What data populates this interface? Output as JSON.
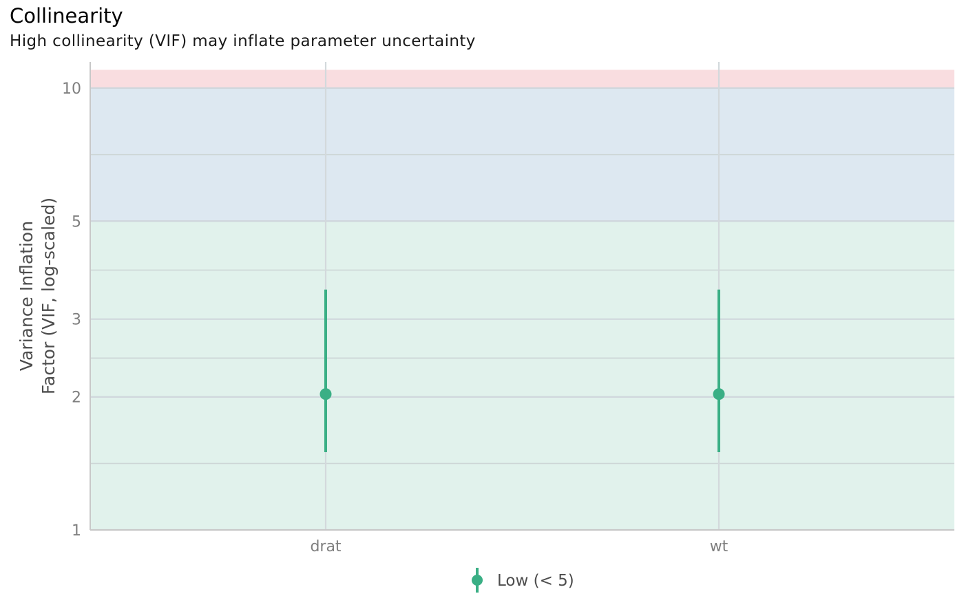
{
  "chart_data": {
    "type": "scatter",
    "title": "Collinearity",
    "subtitle": "High collinearity (VIF) may inflate parameter uncertainty",
    "ylabel_lines": [
      "Variance Inflation",
      "Factor (VIF, log-scaled)"
    ],
    "xlabel": "",
    "y_scale": "log",
    "ylim": [
      1,
      11
    ],
    "y_ticks": [
      1,
      2,
      3,
      5,
      10
    ],
    "y_minor_ticks": [
      1.414,
      2.449,
      3.873,
      7.071
    ],
    "categories": [
      "drat",
      "wt"
    ],
    "series": [
      {
        "name": "Low (< 5)",
        "color": "#3aaf85",
        "points": [
          {
            "x": "drat",
            "y": 2.03,
            "ci_low": 1.5,
            "ci_high": 3.5
          },
          {
            "x": "wt",
            "y": 2.03,
            "ci_low": 1.5,
            "ci_high": 3.5
          }
        ]
      }
    ],
    "bands": [
      {
        "from": 1,
        "to": 5,
        "color": "#e1f2ec"
      },
      {
        "from": 5,
        "to": 10,
        "color": "#dde8f1"
      },
      {
        "from": 10,
        "to": 11,
        "color": "#f9dde0"
      }
    ],
    "grid": true,
    "legend_position": "bottom"
  }
}
